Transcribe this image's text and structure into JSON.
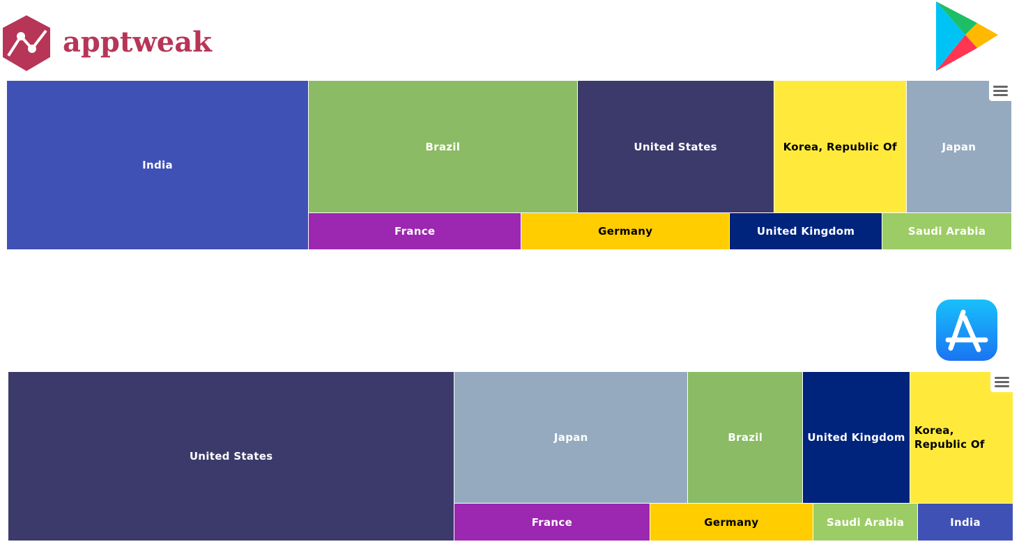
{
  "brand": {
    "logo_text": "apptweak",
    "color": "#b73556"
  },
  "chart_data": [
    {
      "type": "treemap",
      "store_icon": "google-play-icon",
      "categories": [
        "India",
        "Brazil",
        "United States",
        "Korea, Republic Of",
        "Japan",
        "France",
        "Germany",
        "United Kingdom",
        "Saudi Arabia"
      ],
      "values": [
        30.0,
        20.9,
        15.3,
        10.3,
        8.2,
        4.6,
        4.5,
        3.3,
        2.8
      ],
      "colors": [
        "#3f51b5",
        "#8bbb65",
        "#3c3a6b",
        "#ffea3c",
        "#95aabf",
        "#9c27b0",
        "#ffcd00",
        "#00237c",
        "#9ccc65"
      ],
      "menu_icon": "hamburger-menu-icon"
    },
    {
      "type": "treemap",
      "store_icon": "app-store-icon",
      "categories": [
        "United States",
        "Japan",
        "Brazil",
        "United Kingdom",
        "Korea, Republic Of",
        "France",
        "Germany",
        "Saudi Arabia",
        "India"
      ],
      "values": [
        44.4,
        18.1,
        8.9,
        8.3,
        8.0,
        4.3,
        3.6,
        2.3,
        2.1
      ],
      "colors": [
        "#3c3a6b",
        "#95aabf",
        "#8bbb65",
        "#00237c",
        "#ffea3c",
        "#9c27b0",
        "#ffcd00",
        "#9ccc65",
        "#3f51b5"
      ],
      "menu_icon": "hamburger-menu-icon"
    }
  ]
}
